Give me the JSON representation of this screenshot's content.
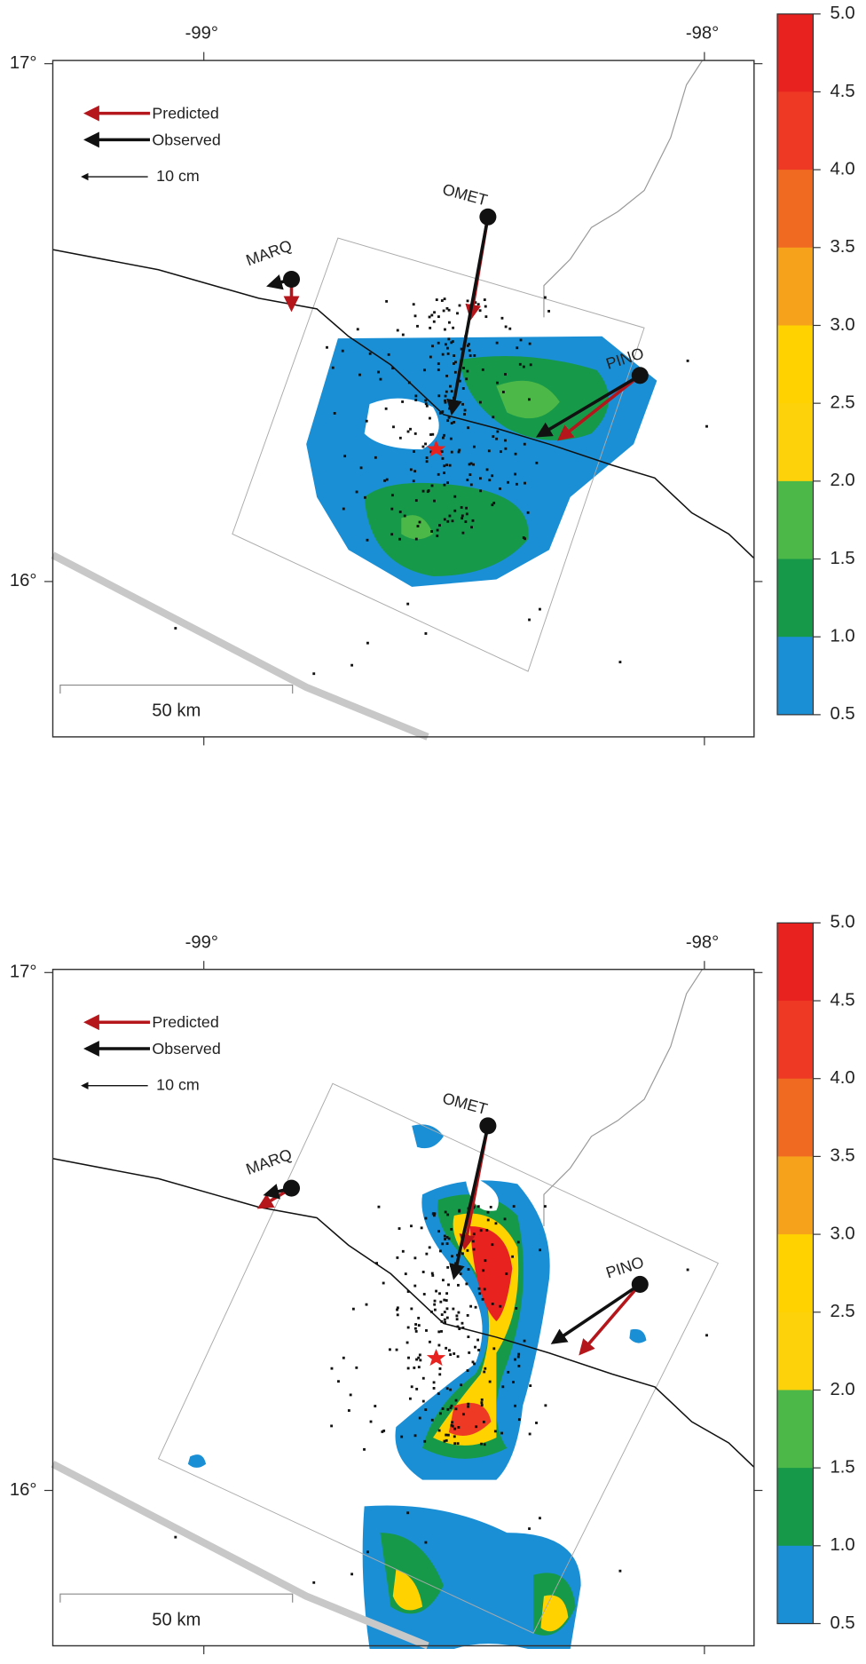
{
  "panels": [
    {
      "lon_labels": [
        "-99°",
        "-98°"
      ],
      "lat_labels": [
        "17°",
        "16°"
      ],
      "legend": {
        "predicted": "Predicted",
        "observed": "Observed",
        "scale": "10 cm"
      },
      "stations": [
        "MARQ",
        "OMET",
        "PINO"
      ],
      "scale_bar": "50 km",
      "colorbar": [
        "5.0",
        "4.5",
        "4.0",
        "3.5",
        "3.0",
        "2.5",
        "2.0",
        "1.5",
        "1.0",
        "0.5"
      ]
    },
    {
      "lon_labels": [
        "-99°",
        "-98°"
      ],
      "lat_labels": [
        "17°",
        "16°"
      ],
      "legend": {
        "predicted": "Predicted",
        "observed": "Observed",
        "scale": "10 cm"
      },
      "stations": [
        "MARQ",
        "OMET",
        "PINO"
      ],
      "scale_bar": "50 km",
      "colorbar": [
        "5.0",
        "4.5",
        "4.0",
        "3.5",
        "3.0",
        "2.5",
        "2.0",
        "1.5",
        "1.0",
        "0.5"
      ]
    }
  ]
}
